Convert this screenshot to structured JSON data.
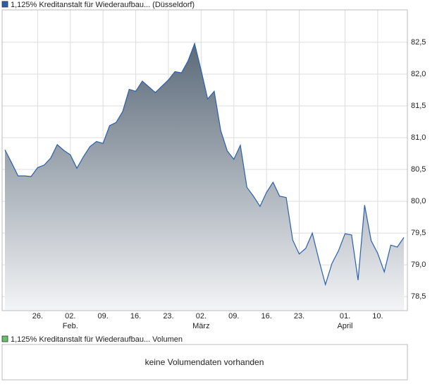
{
  "chart_data": {
    "type": "area",
    "series": [
      {
        "name": "1,125% Kreditanstalt für Wiederaufbau... (Düsseldorf)",
        "color": "#2b5fad",
        "values": [
          80.81,
          80.61,
          80.4,
          80.4,
          80.39,
          80.53,
          80.57,
          80.68,
          80.89,
          80.8,
          80.73,
          80.52,
          80.7,
          80.86,
          80.94,
          80.91,
          81.19,
          81.24,
          81.41,
          81.76,
          81.73,
          81.89,
          81.8,
          81.71,
          81.81,
          81.91,
          82.04,
          82.02,
          82.21,
          82.48,
          82.06,
          81.61,
          81.73,
          81.11,
          80.79,
          80.66,
          80.88,
          80.22,
          80.08,
          79.92,
          80.14,
          80.3,
          80.08,
          80.06,
          79.39,
          79.17,
          79.26,
          79.5,
          79.08,
          78.69,
          79.02,
          79.22,
          79.49,
          79.47,
          78.76,
          79.94,
          79.38,
          79.18,
          78.89,
          79.31,
          79.28,
          79.43
        ]
      }
    ],
    "area_colors": [
      "#5b6a79",
      "#f3f4f6"
    ],
    "categories": [
      null,
      null,
      null,
      null,
      null,
      "26.",
      null,
      null,
      null,
      null,
      "02.",
      null,
      null,
      null,
      null,
      "09.",
      null,
      null,
      null,
      null,
      "16.",
      null,
      null,
      null,
      null,
      "23.",
      null,
      null,
      null,
      null,
      "02.",
      null,
      null,
      null,
      null,
      "09.",
      null,
      null,
      null,
      null,
      "16.",
      null,
      null,
      null,
      null,
      "23.",
      null,
      null,
      null,
      null,
      null,
      null,
      "01.",
      null,
      null,
      null,
      null,
      "10.",
      null,
      null,
      null,
      null
    ],
    "category_months": [
      null,
      null,
      null,
      null,
      null,
      null,
      null,
      null,
      null,
      null,
      "Feb.",
      null,
      null,
      null,
      null,
      null,
      null,
      null,
      null,
      null,
      null,
      null,
      null,
      null,
      null,
      null,
      null,
      null,
      null,
      null,
      "März",
      null,
      null,
      null,
      null,
      null,
      null,
      null,
      null,
      null,
      null,
      null,
      null,
      null,
      null,
      null,
      null,
      null,
      null,
      null,
      null,
      null,
      "April",
      null,
      null,
      null,
      null,
      null,
      null,
      null,
      null,
      null
    ],
    "ylim": [
      78.28,
      83.01
    ],
    "yticks": [
      {
        "value": 78.5,
        "label": "78,5"
      },
      {
        "value": 79,
        "label": "79,0"
      },
      {
        "value": 79.5,
        "label": "79,5"
      },
      {
        "value": 80,
        "label": "80,0"
      },
      {
        "value": 80.5,
        "label": "80,5"
      },
      {
        "value": 81,
        "label": "81,0"
      },
      {
        "value": 81.5,
        "label": "81,5"
      },
      {
        "value": 82,
        "label": "82,0"
      },
      {
        "value": 82.5,
        "label": "82,5"
      }
    ],
    "grid": true
  },
  "volume_panel": {
    "legend": "1,125% Kreditanstalt für Wiederaufbau... Volumen",
    "color": "#66c266",
    "message": "keine Volumendaten vorhanden"
  }
}
